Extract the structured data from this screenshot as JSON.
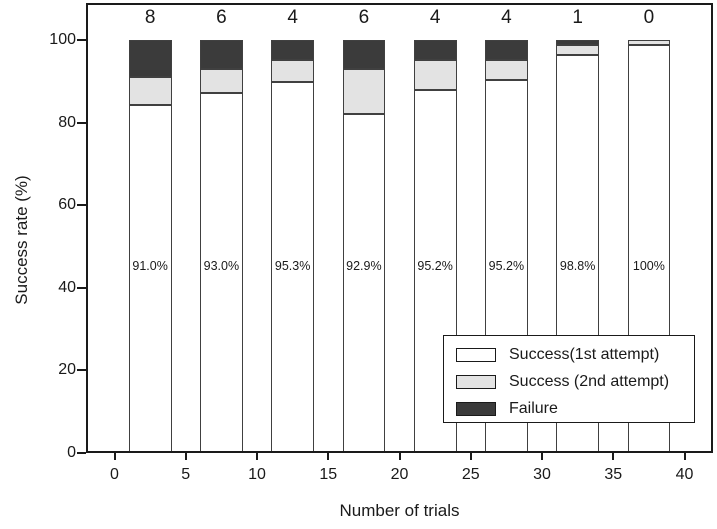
{
  "chart_data": {
    "type": "stacked-bar",
    "title": "",
    "xlabel": "Number of trials",
    "ylabel": "Success rate (%)",
    "xlim": [
      -2,
      42
    ],
    "ylim": [
      0,
      109
    ],
    "x_ticks": [
      0,
      5,
      10,
      15,
      20,
      25,
      30,
      35,
      40
    ],
    "y_ticks": [
      0,
      20,
      40,
      60,
      80,
      100
    ],
    "grid": false,
    "legend_position": "bottom-right",
    "percent_label_y": 45,
    "series": [
      {
        "name": "Success(1st attempt)",
        "key": "first_attempt",
        "color": "#ffffff"
      },
      {
        "name": "Success (2nd attempt)",
        "key": "second_attempt",
        "color": "#e3e3e3"
      },
      {
        "name": "Failure",
        "key": "failure",
        "color": "#3b3b3b"
      }
    ],
    "bars": [
      {
        "x_start": 1,
        "x_end": 4,
        "first_attempt": 84.4,
        "second_attempt": 6.6,
        "failure": 9.0,
        "total_success_label": "91.0%",
        "failure_count_label": "8"
      },
      {
        "x_start": 6,
        "x_end": 9,
        "first_attempt": 87.2,
        "second_attempt": 5.8,
        "failure": 7.0,
        "total_success_label": "93.0%",
        "failure_count_label": "6"
      },
      {
        "x_start": 11,
        "x_end": 14,
        "first_attempt": 89.8,
        "second_attempt": 5.5,
        "failure": 4.7,
        "total_success_label": "95.3%",
        "failure_count_label": "4"
      },
      {
        "x_start": 16,
        "x_end": 19,
        "first_attempt": 82.1,
        "second_attempt": 10.8,
        "failure": 7.1,
        "total_success_label": "92.9%",
        "failure_count_label": "6"
      },
      {
        "x_start": 21,
        "x_end": 24,
        "first_attempt": 88.0,
        "second_attempt": 7.2,
        "failure": 4.8,
        "total_success_label": "95.2%",
        "failure_count_label": "4"
      },
      {
        "x_start": 26,
        "x_end": 29,
        "first_attempt": 90.4,
        "second_attempt": 4.8,
        "failure": 4.8,
        "total_success_label": "95.2%",
        "failure_count_label": "4"
      },
      {
        "x_start": 31,
        "x_end": 34,
        "first_attempt": 96.4,
        "second_attempt": 2.4,
        "failure": 1.2,
        "total_success_label": "98.8%",
        "failure_count_label": "1"
      },
      {
        "x_start": 36,
        "x_end": 39,
        "first_attempt": 98.8,
        "second_attempt": 1.2,
        "failure": 0.0,
        "total_success_label": "100%",
        "failure_count_label": "0"
      }
    ],
    "colors": {
      "axis": "#1a1a1a",
      "bar_border": "#404040",
      "text": "#1a1a1a",
      "background": "#ffffff"
    }
  }
}
